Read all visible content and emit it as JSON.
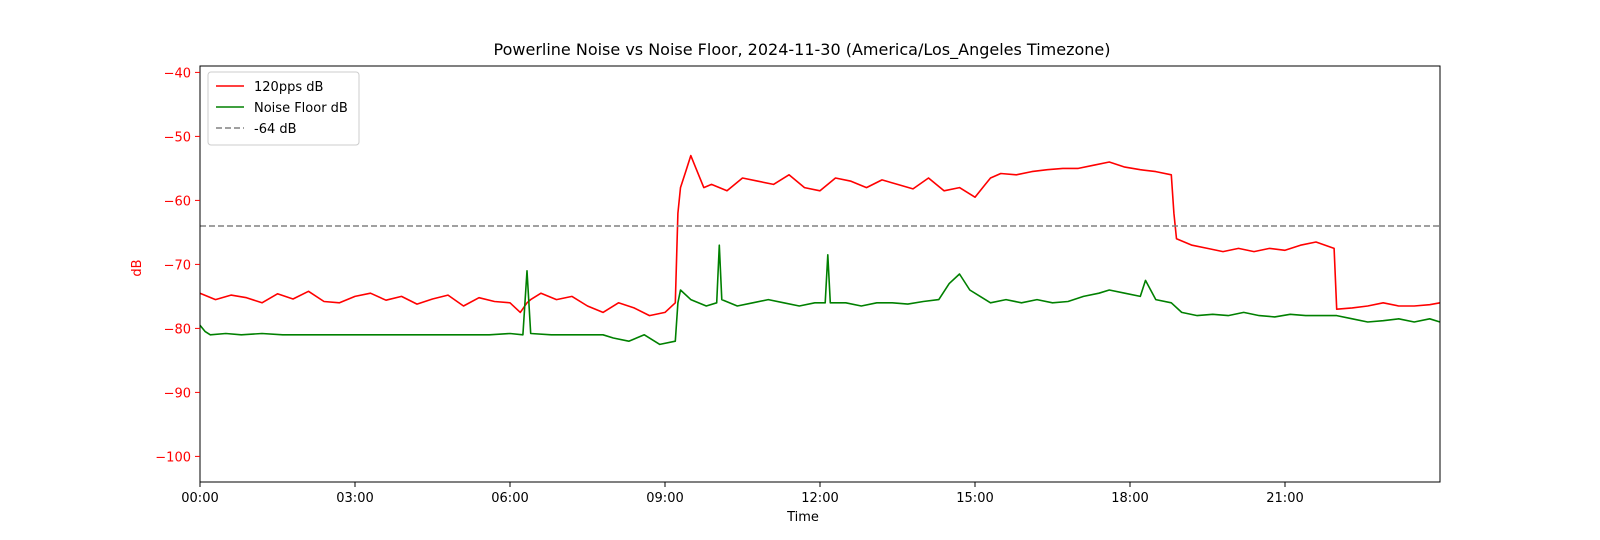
{
  "chart_data": {
    "type": "line",
    "title": "Powerline Noise vs Noise Floor, 2024-11-30 (America/Los_Angeles Timezone)",
    "xlabel": "Time",
    "ylabel": "dB",
    "xlim": [
      0,
      24
    ],
    "ylim": [
      -104,
      -39
    ],
    "xticks": [
      {
        "value": 0,
        "label": "00:00"
      },
      {
        "value": 3,
        "label": "03:00"
      },
      {
        "value": 6,
        "label": "06:00"
      },
      {
        "value": 9,
        "label": "09:00"
      },
      {
        "value": 12,
        "label": "12:00"
      },
      {
        "value": 15,
        "label": "15:00"
      },
      {
        "value": 18,
        "label": "18:00"
      },
      {
        "value": 21,
        "label": "21:00"
      }
    ],
    "yticks": [
      {
        "value": -40,
        "label": "−40"
      },
      {
        "value": -50,
        "label": "−50"
      },
      {
        "value": -60,
        "label": "−60"
      },
      {
        "value": -70,
        "label": "−70"
      },
      {
        "value": -80,
        "label": "−80"
      },
      {
        "value": -90,
        "label": "−90"
      },
      {
        "value": -100,
        "label": "−100"
      }
    ],
    "grid": false,
    "legend_position": "top-left",
    "axis_color": "#ff0000",
    "series": [
      {
        "name": "120pps dB",
        "color": "#ff0000",
        "style": "solid",
        "x": [
          0,
          0.3,
          0.6,
          0.9,
          1.2,
          1.5,
          1.8,
          2.1,
          2.4,
          2.7,
          3.0,
          3.3,
          3.6,
          3.9,
          4.2,
          4.5,
          4.8,
          5.1,
          5.4,
          5.7,
          6.0,
          6.2,
          6.33,
          6.4,
          6.6,
          6.9,
          7.2,
          7.5,
          7.8,
          8.1,
          8.4,
          8.7,
          9.0,
          9.2,
          9.25,
          9.3,
          9.4,
          9.5,
          9.6,
          9.75,
          9.9,
          10.2,
          10.5,
          10.8,
          11.1,
          11.4,
          11.7,
          12.0,
          12.3,
          12.6,
          12.9,
          13.2,
          13.5,
          13.8,
          14.1,
          14.4,
          14.7,
          15.0,
          15.2,
          15.3,
          15.5,
          15.8,
          16.1,
          16.4,
          16.7,
          17.0,
          17.3,
          17.6,
          17.9,
          18.2,
          18.5,
          18.8,
          18.85,
          18.9,
          19.2,
          19.5,
          19.8,
          20.1,
          20.4,
          20.7,
          21.0,
          21.3,
          21.6,
          21.95,
          22.0,
          22.3,
          22.6,
          22.9,
          23.2,
          23.5,
          23.8,
          24.0
        ],
        "values": [
          -74.5,
          -75.5,
          -74.8,
          -75.2,
          -76.0,
          -74.6,
          -75.4,
          -74.2,
          -75.8,
          -76.0,
          -75.0,
          -74.5,
          -75.6,
          -75.0,
          -76.2,
          -75.4,
          -74.8,
          -76.5,
          -75.2,
          -75.8,
          -76.0,
          -77.5,
          -76.0,
          -75.5,
          -74.5,
          -75.5,
          -75.0,
          -76.5,
          -77.5,
          -76.0,
          -76.8,
          -78.0,
          -77.5,
          -76.0,
          -62.0,
          -58.0,
          -55.5,
          -53.0,
          -55.0,
          -58.0,
          -57.5,
          -58.5,
          -56.5,
          -57.0,
          -57.5,
          -56.0,
          -58.0,
          -58.5,
          -56.5,
          -57.0,
          -58.0,
          -56.8,
          -57.5,
          -58.2,
          -56.5,
          -58.5,
          -58.0,
          -59.5,
          -57.5,
          -56.5,
          -55.8,
          -56.0,
          -55.5,
          -55.2,
          -55.0,
          -55.0,
          -54.5,
          -54.0,
          -54.8,
          -55.2,
          -55.5,
          -56.0,
          -62.0,
          -66.0,
          -67.0,
          -67.5,
          -68.0,
          -67.5,
          -68.0,
          -67.5,
          -67.8,
          -67.0,
          -66.5,
          -67.5,
          -77.0,
          -76.8,
          -76.5,
          -76.0,
          -76.5,
          -76.5,
          -76.3,
          -76.0
        ]
      },
      {
        "name": "Noise Floor dB",
        "color": "#008000",
        "style": "solid",
        "x": [
          0,
          0.1,
          0.2,
          0.5,
          0.8,
          1.2,
          1.6,
          2.0,
          2.4,
          2.8,
          3.2,
          3.6,
          4.0,
          4.4,
          4.8,
          5.2,
          5.6,
          6.0,
          6.25,
          6.33,
          6.4,
          6.8,
          7.2,
          7.6,
          7.8,
          8.0,
          8.3,
          8.6,
          8.9,
          9.2,
          9.25,
          9.3,
          9.5,
          9.8,
          10.0,
          10.05,
          10.1,
          10.4,
          10.7,
          11.0,
          11.3,
          11.6,
          11.9,
          12.1,
          12.15,
          12.2,
          12.5,
          12.8,
          13.1,
          13.4,
          13.7,
          14.0,
          14.3,
          14.5,
          14.7,
          14.9,
          15.1,
          15.3,
          15.6,
          15.9,
          16.2,
          16.5,
          16.8,
          17.1,
          17.4,
          17.6,
          17.9,
          18.2,
          18.3,
          18.5,
          18.8,
          19.0,
          19.3,
          19.6,
          19.9,
          20.2,
          20.5,
          20.8,
          21.1,
          21.4,
          21.7,
          22.0,
          22.3,
          22.6,
          22.9,
          23.2,
          23.5,
          23.8,
          24.0
        ],
        "values": [
          -79.5,
          -80.5,
          -81.0,
          -80.8,
          -81.0,
          -80.8,
          -81.0,
          -81.0,
          -81.0,
          -81.0,
          -81.0,
          -81.0,
          -81.0,
          -81.0,
          -81.0,
          -81.0,
          -81.0,
          -80.8,
          -81.0,
          -71.0,
          -80.8,
          -81.0,
          -81.0,
          -81.0,
          -81.0,
          -81.5,
          -82.0,
          -81.0,
          -82.5,
          -82.0,
          -76.0,
          -74.0,
          -75.5,
          -76.5,
          -76.0,
          -67.0,
          -75.5,
          -76.5,
          -76.0,
          -75.5,
          -76.0,
          -76.5,
          -76.0,
          -76.0,
          -68.5,
          -76.0,
          -76.0,
          -76.5,
          -76.0,
          -76.0,
          -76.2,
          -75.8,
          -75.5,
          -73.0,
          -71.5,
          -74.0,
          -75.0,
          -76.0,
          -75.5,
          -76.0,
          -75.5,
          -76.0,
          -75.8,
          -75.0,
          -74.5,
          -74.0,
          -74.5,
          -75.0,
          -72.5,
          -75.5,
          -76.0,
          -77.5,
          -78.0,
          -77.8,
          -78.0,
          -77.5,
          -78.0,
          -78.2,
          -77.8,
          -78.0,
          -78.0,
          -78.0,
          -78.5,
          -79.0,
          -78.8,
          -78.5,
          -79.0,
          -78.5,
          -79.0
        ]
      },
      {
        "name": "-64 dB",
        "color": "#808080",
        "style": "dashed",
        "x": [
          0,
          24
        ],
        "values": [
          -64,
          -64
        ]
      }
    ]
  }
}
